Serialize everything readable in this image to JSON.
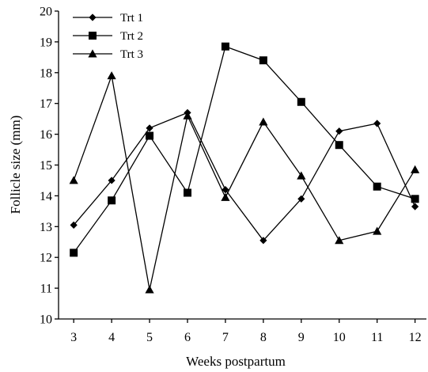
{
  "chart_data": {
    "type": "line",
    "xlabel": "Weeks postpartum",
    "ylabel": "Follicle size (mm)",
    "x": [
      3,
      4,
      5,
      6,
      7,
      8,
      9,
      10,
      11,
      12
    ],
    "xlim": [
      2.6,
      12.3
    ],
    "ylim": [
      10,
      20
    ],
    "yticks": [
      10,
      11,
      12,
      13,
      14,
      15,
      16,
      17,
      18,
      19,
      20
    ],
    "grid": false,
    "legend_position": "top-left",
    "series": [
      {
        "name": "Trt 1",
        "marker": "diamond",
        "color": "#000000",
        "values": [
          13.05,
          14.5,
          16.2,
          16.7,
          14.2,
          12.55,
          13.9,
          16.1,
          16.35,
          13.65
        ]
      },
      {
        "name": "Trt 2",
        "marker": "square",
        "color": "#000000",
        "values": [
          12.15,
          13.85,
          15.95,
          14.1,
          18.85,
          18.4,
          17.05,
          15.65,
          14.3,
          13.9
        ]
      },
      {
        "name": "Trt 3",
        "marker": "triangle",
        "color": "#000000",
        "values": [
          14.5,
          17.9,
          10.95,
          16.6,
          13.95,
          16.4,
          14.65,
          12.55,
          12.85,
          14.85
        ]
      }
    ]
  }
}
